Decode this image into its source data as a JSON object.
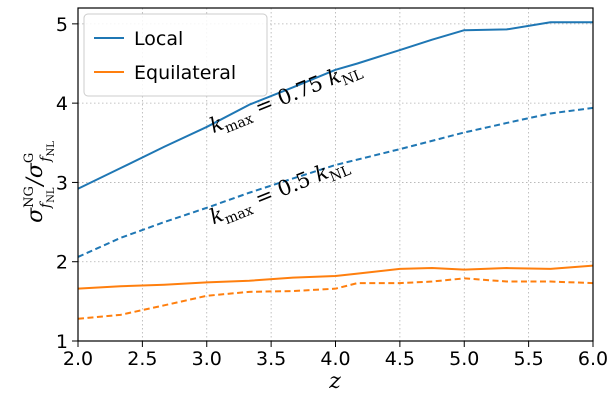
{
  "chart_data": {
    "type": "line",
    "xlabel": "z",
    "ylabel": {
      "base": "σ",
      "sup": "NG",
      "sub_f": "f",
      "sub_nl": "NL",
      "sep": "/",
      "base2": "σ",
      "sup2": "G"
    },
    "xlim": [
      2.0,
      6.0
    ],
    "ylim": [
      1,
      5.2
    ],
    "xticks": [
      2.0,
      2.5,
      3.0,
      3.5,
      4.0,
      4.5,
      5.0,
      5.5,
      6.0
    ],
    "xtick_labels": [
      "2.0",
      "2.5",
      "3.0",
      "3.5",
      "4.0",
      "4.5",
      "5.0",
      "5.5",
      "6.0"
    ],
    "yticks": [
      1,
      2,
      3,
      4,
      5
    ],
    "ytick_labels": [
      "1",
      "2",
      "3",
      "4",
      "5"
    ],
    "grid": true,
    "legend_placement": "top-left",
    "legend": [
      "Local",
      "Equilateral"
    ],
    "colors": {
      "local": "#1f77b4",
      "equilateral": "#ff7f0e"
    },
    "annotations": [
      {
        "k": "k",
        "sub": "max",
        "eq": " = 0.75 ",
        "k2": "k",
        "sub2": "NL",
        "x": 3.05,
        "y": 3.62
      },
      {
        "k": "k",
        "sub": "max",
        "eq": " = 0.5 ",
        "k2": "k",
        "sub2": "NL",
        "x": 3.05,
        "y": 2.47
      }
    ],
    "series": [
      {
        "legend": "Local",
        "style": "solid",
        "color": "#1f77b4",
        "x": [
          2.0,
          2.33,
          2.67,
          3.0,
          3.33,
          3.67,
          4.0,
          4.17,
          4.5,
          4.75,
          5.0,
          5.33,
          5.67,
          6.0
        ],
        "y": [
          2.92,
          3.18,
          3.45,
          3.7,
          3.98,
          4.2,
          4.42,
          4.5,
          4.67,
          4.8,
          4.92,
          4.93,
          5.02,
          5.02
        ]
      },
      {
        "style": "dashed",
        "color": "#1f77b4",
        "x": [
          2.0,
          2.33,
          2.67,
          3.0,
          3.33,
          3.67,
          4.0,
          4.5,
          5.0,
          5.33,
          5.67,
          6.0
        ],
        "y": [
          2.06,
          2.3,
          2.5,
          2.68,
          2.87,
          3.05,
          3.22,
          3.42,
          3.63,
          3.75,
          3.87,
          3.94
        ]
      },
      {
        "legend": "Equilateral",
        "style": "solid",
        "color": "#ff7f0e",
        "x": [
          2.0,
          2.33,
          2.67,
          3.0,
          3.33,
          3.67,
          4.0,
          4.17,
          4.5,
          4.75,
          5.0,
          5.33,
          5.67,
          6.0
        ],
        "y": [
          1.66,
          1.69,
          1.71,
          1.74,
          1.76,
          1.8,
          1.82,
          1.85,
          1.91,
          1.92,
          1.9,
          1.92,
          1.91,
          1.95
        ]
      },
      {
        "style": "dashed",
        "color": "#ff7f0e",
        "x": [
          2.0,
          2.33,
          2.67,
          3.0,
          3.33,
          3.67,
          4.0,
          4.17,
          4.5,
          4.75,
          5.0,
          5.33,
          5.67,
          6.0
        ],
        "y": [
          1.28,
          1.33,
          1.45,
          1.57,
          1.62,
          1.63,
          1.66,
          1.73,
          1.73,
          1.75,
          1.79,
          1.75,
          1.75,
          1.73
        ]
      }
    ]
  }
}
